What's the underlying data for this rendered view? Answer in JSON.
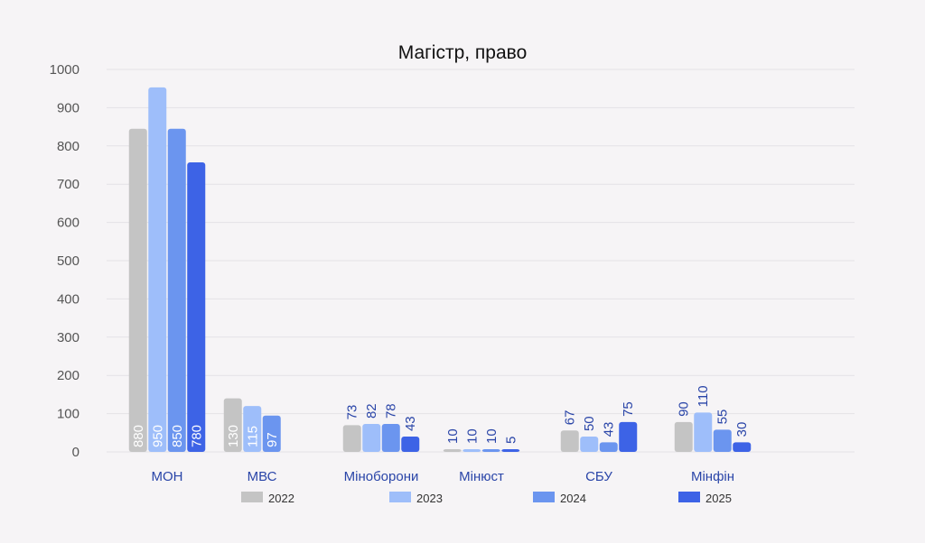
{
  "chart_data": {
    "type": "bar",
    "title": "Магістр, право",
    "xlabel": "",
    "ylabel": "",
    "ylim": [
      0,
      1000
    ],
    "yticks": [
      0,
      100,
      200,
      300,
      400,
      500,
      600,
      700,
      800,
      900,
      1000
    ],
    "grid": true,
    "legend_position": "bottom",
    "categories": [
      "МОН",
      "МВС",
      "Міноборони",
      "Мінюст",
      "СБУ",
      "Мінфін"
    ],
    "series": [
      {
        "name": "2022",
        "color": "#c4c4c4",
        "values": [
          880,
          130,
          73,
          10,
          67,
          90
        ]
      },
      {
        "name": "2023",
        "color": "#9ebefa",
        "values": [
          950,
          115,
          82,
          10,
          50,
          110
        ]
      },
      {
        "name": "2024",
        "color": "#6b95ef",
        "values": [
          850,
          97,
          78,
          10,
          43,
          55
        ]
      },
      {
        "name": "2025",
        "color": "#3d63e6",
        "values": [
          780,
          null,
          43,
          5,
          75,
          30
        ]
      }
    ],
    "bar_heights_as_drawn": [
      [
        845,
        140,
        70,
        3,
        56,
        78
      ],
      [
        953,
        120,
        73,
        3,
        40,
        103
      ],
      [
        845,
        95,
        73,
        3,
        25,
        58
      ],
      [
        757,
        null,
        40,
        3,
        78,
        25
      ]
    ],
    "label_placement": [
      "inside",
      "inside",
      "above",
      "above",
      "above",
      "above"
    ],
    "colors": {
      "inside_label": "#ffffff",
      "outside_label": "#2a45a8"
    }
  }
}
